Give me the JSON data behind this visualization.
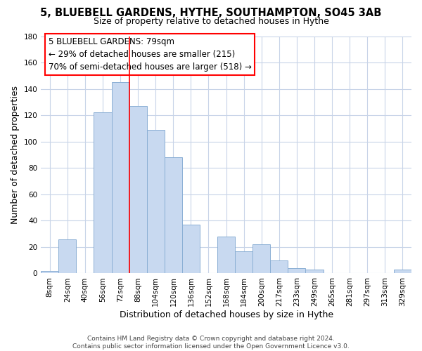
{
  "title": "5, BLUEBELL GARDENS, HYTHE, SOUTHAMPTON, SO45 3AB",
  "subtitle": "Size of property relative to detached houses in Hythe",
  "xlabel": "Distribution of detached houses by size in Hythe",
  "ylabel": "Number of detached properties",
  "bar_labels": [
    "8sqm",
    "24sqm",
    "40sqm",
    "56sqm",
    "72sqm",
    "88sqm",
    "104sqm",
    "120sqm",
    "136sqm",
    "152sqm",
    "168sqm",
    "184sqm",
    "200sqm",
    "217sqm",
    "233sqm",
    "249sqm",
    "265sqm",
    "281sqm",
    "297sqm",
    "313sqm",
    "329sqm"
  ],
  "bar_values": [
    2,
    26,
    0,
    122,
    145,
    127,
    109,
    88,
    37,
    0,
    28,
    17,
    22,
    10,
    4,
    3,
    0,
    0,
    0,
    0,
    3
  ],
  "bar_color": "#c8d9f0",
  "bar_edge_color": "#8bafd4",
  "ylim": [
    0,
    180
  ],
  "yticks": [
    0,
    20,
    40,
    60,
    80,
    100,
    120,
    140,
    160,
    180
  ],
  "property_label": "5 BLUEBELL GARDENS: 79sqm",
  "annotation_line1": "← 29% of detached houses are smaller (215)",
  "annotation_line2": "70% of semi-detached houses are larger (518) →",
  "vline_x_index": 4.5,
  "footer_line1": "Contains HM Land Registry data © Crown copyright and database right 2024.",
  "footer_line2": "Contains public sector information licensed under the Open Government Licence v3.0.",
  "background_color": "#ffffff",
  "grid_color": "#c8d4e8",
  "title_fontsize": 10.5,
  "subtitle_fontsize": 9,
  "axis_label_fontsize": 9,
  "tick_fontsize": 7.5,
  "annotation_fontsize": 8.5,
  "footer_fontsize": 6.5
}
